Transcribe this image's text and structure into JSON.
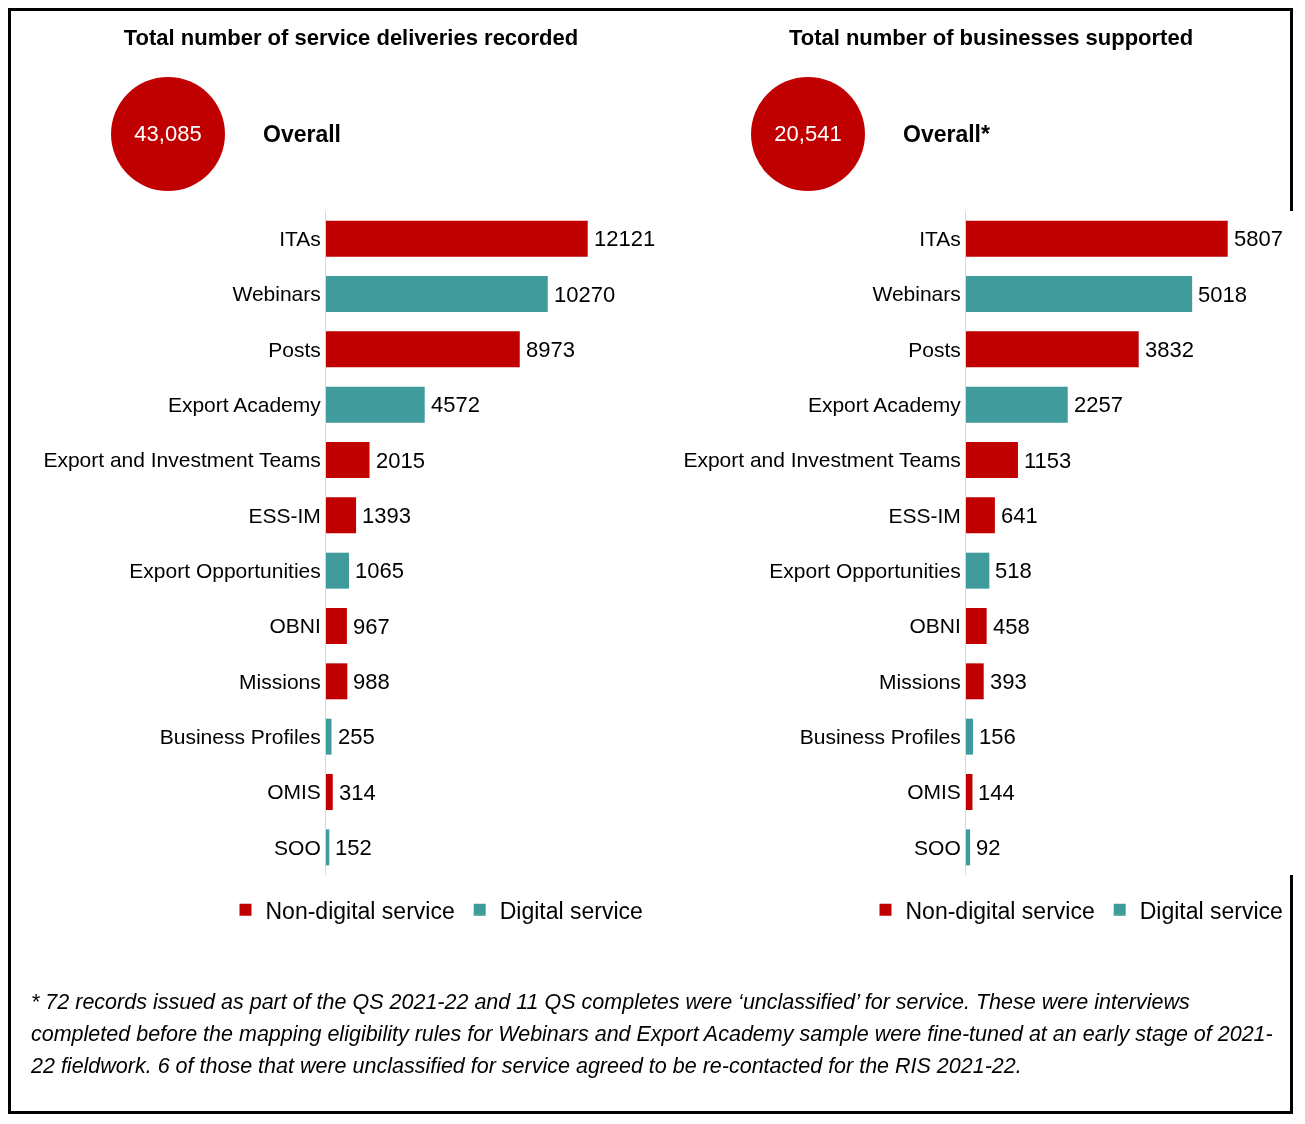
{
  "chart_data": [
    {
      "type": "bar",
      "orientation": "horizontal",
      "stacked": true,
      "data_labels": true,
      "legend": "bottom",
      "title": "Total number of service deliveries recorded",
      "annotations": [
        "43,085",
        "Overall"
      ],
      "categories": [
        "ITAs",
        "Webinars",
        "Posts",
        "Export Academy",
        "Export and Investment Teams",
        "ESS-IM",
        "Export Opportunities",
        "OBNI",
        "Missions",
        "Business Profiles",
        "OMIS",
        "SOO"
      ],
      "series": [
        {
          "name": "Non-digital service",
          "color": "#c00000",
          "values": [
            12121,
            null,
            8973,
            null,
            2015,
            1393,
            null,
            967,
            988,
            null,
            314,
            null
          ]
        },
        {
          "name": "Digital service",
          "color": "#409c9c",
          "values": [
            null,
            10270,
            null,
            4572,
            null,
            null,
            1065,
            null,
            null,
            255,
            null,
            152
          ]
        }
      ]
    },
    {
      "type": "bar",
      "orientation": "horizontal",
      "stacked": true,
      "data_labels": true,
      "legend": "bottom",
      "title": "Total number of businesses supported",
      "annotations": [
        "20,541",
        "Overall*"
      ],
      "categories": [
        "ITAs",
        "Webinars",
        "Posts",
        "Export Academy",
        "Export and Investment Teams",
        "ESS-IM",
        "Export Opportunities",
        "OBNI",
        "Missions",
        "Business Profiles",
        "OMIS",
        "SOO"
      ],
      "series": [
        {
          "name": "Non-digital service",
          "color": "#c00000",
          "values": [
            5807,
            null,
            3832,
            null,
            1153,
            641,
            null,
            458,
            393,
            null,
            144,
            null
          ]
        },
        {
          "name": "Digital service",
          "color": "#409c9c",
          "values": [
            null,
            5018,
            null,
            2257,
            null,
            null,
            518,
            null,
            null,
            156,
            null,
            92
          ]
        }
      ]
    },
    {
      "type": "other",
      "annotations": [
        "* 72 records issued as part of the QS 2021-22 and 11 QS completes were ‘unclassified’ for service. These were interviews completed before the mapping eligibility  rules for Webinars and Export Academy sample were fine-tuned at an early stage of 2021-22 fieldwork. 6 of those that were unclassified for service agreed to be re-contacted for the RIS 2021-22."
      ]
    }
  ]
}
